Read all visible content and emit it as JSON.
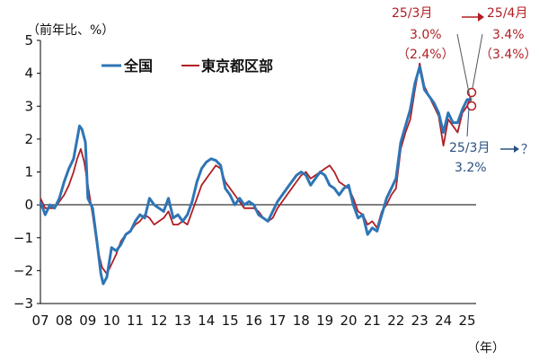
{
  "chart_data": {
    "type": "line",
    "ylabel": "（前年比、%）",
    "xunit": "（年）",
    "ylim": [
      -3,
      5
    ],
    "yticks": [
      -3,
      -2,
      -1,
      0,
      1,
      2,
      3,
      4,
      5
    ],
    "xticks": [
      "07",
      "08",
      "09",
      "10",
      "11",
      "12",
      "13",
      "14",
      "15",
      "16",
      "17",
      "18",
      "19",
      "20",
      "21",
      "22",
      "23",
      "24",
      "25"
    ],
    "xticks_at": [
      2007,
      2008,
      2009,
      2010,
      2011,
      2012,
      2013,
      2014,
      2015,
      2016,
      2017,
      2018,
      2019,
      2020,
      2021,
      2022,
      2023,
      2024,
      2025
    ],
    "xlim": [
      2007,
      2025.5
    ],
    "grid": false,
    "legend": "top-left",
    "series": [
      {
        "name": "全国",
        "color": "#2e75b6",
        "points": [
          [
            2007.0,
            0.1
          ],
          [
            2007.2,
            -0.3
          ],
          [
            2007.4,
            0.0
          ],
          [
            2007.6,
            -0.1
          ],
          [
            2007.8,
            0.2
          ],
          [
            2008.0,
            0.7
          ],
          [
            2008.2,
            1.1
          ],
          [
            2008.4,
            1.4
          ],
          [
            2008.55,
            2.0
          ],
          [
            2008.65,
            2.4
          ],
          [
            2008.75,
            2.3
          ],
          [
            2008.9,
            1.9
          ],
          [
            2009.0,
            0.2
          ],
          [
            2009.2,
            -0.1
          ],
          [
            2009.4,
            -1.2
          ],
          [
            2009.55,
            -2.1
          ],
          [
            2009.65,
            -2.4
          ],
          [
            2009.8,
            -2.2
          ],
          [
            2010.0,
            -1.3
          ],
          [
            2010.2,
            -1.4
          ],
          [
            2010.4,
            -1.2
          ],
          [
            2010.6,
            -0.9
          ],
          [
            2010.8,
            -0.8
          ],
          [
            2011.0,
            -0.5
          ],
          [
            2011.2,
            -0.3
          ],
          [
            2011.4,
            -0.4
          ],
          [
            2011.6,
            0.2
          ],
          [
            2011.8,
            0.0
          ],
          [
            2012.0,
            -0.1
          ],
          [
            2012.2,
            -0.2
          ],
          [
            2012.4,
            0.2
          ],
          [
            2012.6,
            -0.4
          ],
          [
            2012.8,
            -0.3
          ],
          [
            2013.0,
            -0.5
          ],
          [
            2013.2,
            -0.3
          ],
          [
            2013.4,
            0.1
          ],
          [
            2013.6,
            0.7
          ],
          [
            2013.8,
            1.1
          ],
          [
            2014.0,
            1.3
          ],
          [
            2014.2,
            1.4
          ],
          [
            2014.4,
            1.35
          ],
          [
            2014.6,
            1.2
          ],
          [
            2014.8,
            0.5
          ],
          [
            2015.0,
            0.3
          ],
          [
            2015.2,
            0.0
          ],
          [
            2015.4,
            0.2
          ],
          [
            2015.6,
            0.0
          ],
          [
            2015.8,
            0.1
          ],
          [
            2016.0,
            0.0
          ],
          [
            2016.2,
            -0.3
          ],
          [
            2016.4,
            -0.4
          ],
          [
            2016.6,
            -0.5
          ],
          [
            2016.8,
            -0.2
          ],
          [
            2017.0,
            0.1
          ],
          [
            2017.2,
            0.3
          ],
          [
            2017.4,
            0.5
          ],
          [
            2017.6,
            0.7
          ],
          [
            2017.8,
            0.9
          ],
          [
            2018.0,
            1.0
          ],
          [
            2018.2,
            0.9
          ],
          [
            2018.4,
            0.6
          ],
          [
            2018.6,
            0.8
          ],
          [
            2018.8,
            1.0
          ],
          [
            2019.0,
            0.9
          ],
          [
            2019.2,
            0.6
          ],
          [
            2019.4,
            0.5
          ],
          [
            2019.6,
            0.3
          ],
          [
            2019.8,
            0.5
          ],
          [
            2020.0,
            0.6
          ],
          [
            2020.2,
            0.0
          ],
          [
            2020.4,
            -0.4
          ],
          [
            2020.6,
            -0.3
          ],
          [
            2020.8,
            -0.9
          ],
          [
            2021.0,
            -0.7
          ],
          [
            2021.2,
            -0.8
          ],
          [
            2021.4,
            -0.3
          ],
          [
            2021.6,
            0.2
          ],
          [
            2021.8,
            0.5
          ],
          [
            2022.0,
            0.8
          ],
          [
            2022.2,
            1.9
          ],
          [
            2022.4,
            2.4
          ],
          [
            2022.6,
            2.9
          ],
          [
            2022.8,
            3.7
          ],
          [
            2023.0,
            4.2
          ],
          [
            2023.2,
            3.5
          ],
          [
            2023.4,
            3.3
          ],
          [
            2023.6,
            3.1
          ],
          [
            2023.8,
            2.8
          ],
          [
            2024.0,
            2.2
          ],
          [
            2024.2,
            2.8
          ],
          [
            2024.4,
            2.5
          ],
          [
            2024.6,
            2.5
          ],
          [
            2024.8,
            2.9
          ],
          [
            2025.0,
            3.2
          ],
          [
            2025.2,
            3.2
          ]
        ]
      },
      {
        "name": "東京都区部",
        "color": "#b01e24",
        "points": [
          [
            2007.0,
            0.2
          ],
          [
            2007.2,
            -0.1
          ],
          [
            2007.4,
            -0.1
          ],
          [
            2007.6,
            -0.1
          ],
          [
            2007.8,
            0.1
          ],
          [
            2008.0,
            0.3
          ],
          [
            2008.2,
            0.6
          ],
          [
            2008.4,
            1.0
          ],
          [
            2008.55,
            1.4
          ],
          [
            2008.7,
            1.7
          ],
          [
            2008.85,
            1.3
          ],
          [
            2009.0,
            0.6
          ],
          [
            2009.2,
            -0.3
          ],
          [
            2009.4,
            -1.3
          ],
          [
            2009.6,
            -1.9
          ],
          [
            2009.8,
            -2.1
          ],
          [
            2010.0,
            -1.8
          ],
          [
            2010.2,
            -1.5
          ],
          [
            2010.4,
            -1.1
          ],
          [
            2010.6,
            -0.9
          ],
          [
            2010.8,
            -0.8
          ],
          [
            2011.0,
            -0.6
          ],
          [
            2011.2,
            -0.5
          ],
          [
            2011.4,
            -0.3
          ],
          [
            2011.6,
            -0.4
          ],
          [
            2011.8,
            -0.6
          ],
          [
            2012.0,
            -0.5
          ],
          [
            2012.2,
            -0.4
          ],
          [
            2012.4,
            -0.2
          ],
          [
            2012.6,
            -0.6
          ],
          [
            2012.8,
            -0.6
          ],
          [
            2013.0,
            -0.5
          ],
          [
            2013.2,
            -0.6
          ],
          [
            2013.4,
            -0.2
          ],
          [
            2013.6,
            0.2
          ],
          [
            2013.8,
            0.6
          ],
          [
            2014.0,
            0.8
          ],
          [
            2014.2,
            1.0
          ],
          [
            2014.4,
            1.2
          ],
          [
            2014.6,
            1.1
          ],
          [
            2014.8,
            0.7
          ],
          [
            2015.0,
            0.5
          ],
          [
            2015.2,
            0.3
          ],
          [
            2015.4,
            0.1
          ],
          [
            2015.6,
            -0.1
          ],
          [
            2015.8,
            -0.1
          ],
          [
            2016.0,
            -0.1
          ],
          [
            2016.2,
            -0.2
          ],
          [
            2016.4,
            -0.4
          ],
          [
            2016.6,
            -0.5
          ],
          [
            2016.8,
            -0.4
          ],
          [
            2017.0,
            -0.1
          ],
          [
            2017.2,
            0.1
          ],
          [
            2017.4,
            0.3
          ],
          [
            2017.6,
            0.5
          ],
          [
            2017.8,
            0.7
          ],
          [
            2018.0,
            0.9
          ],
          [
            2018.2,
            1.0
          ],
          [
            2018.4,
            0.8
          ],
          [
            2018.6,
            0.9
          ],
          [
            2018.8,
            1.0
          ],
          [
            2019.0,
            1.1
          ],
          [
            2019.2,
            1.2
          ],
          [
            2019.4,
            1.0
          ],
          [
            2019.6,
            0.7
          ],
          [
            2019.8,
            0.6
          ],
          [
            2020.0,
            0.5
          ],
          [
            2020.2,
            0.2
          ],
          [
            2020.4,
            -0.2
          ],
          [
            2020.6,
            -0.3
          ],
          [
            2020.8,
            -0.6
          ],
          [
            2021.0,
            -0.5
          ],
          [
            2021.2,
            -0.7
          ],
          [
            2021.4,
            -0.2
          ],
          [
            2021.6,
            0.0
          ],
          [
            2021.8,
            0.3
          ],
          [
            2022.0,
            0.5
          ],
          [
            2022.2,
            1.7
          ],
          [
            2022.4,
            2.2
          ],
          [
            2022.6,
            2.6
          ],
          [
            2022.8,
            3.5
          ],
          [
            2023.0,
            4.3
          ],
          [
            2023.2,
            3.6
          ],
          [
            2023.4,
            3.3
          ],
          [
            2023.6,
            3.0
          ],
          [
            2023.8,
            2.7
          ],
          [
            2024.0,
            1.8
          ],
          [
            2024.2,
            2.6
          ],
          [
            2024.4,
            2.4
          ],
          [
            2024.6,
            2.2
          ],
          [
            2024.8,
            2.8
          ],
          [
            2025.0,
            3.0
          ],
          [
            2025.2,
            3.4
          ]
        ]
      }
    ],
    "annotations": {
      "tokyo_mar_label": "25/3月",
      "tokyo_mar_value": "3.0%",
      "tokyo_mar_prev": "（2.4%）",
      "tokyo_apr_label": "25/4月",
      "tokyo_apr_value": "3.4%",
      "tokyo_apr_prev": "（3.4%）",
      "national_mar_label": "25/3月",
      "national_mar_value": "3.2%",
      "national_next": "？"
    }
  }
}
